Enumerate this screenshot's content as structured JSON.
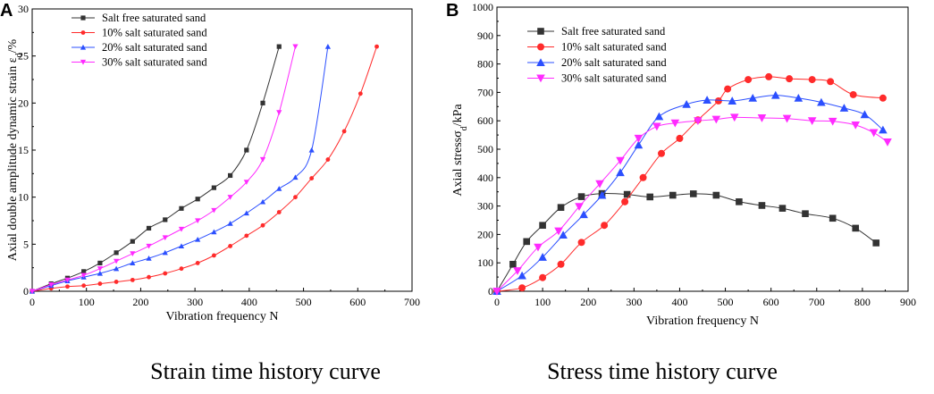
{
  "panel_a": {
    "letter": "A",
    "caption": "Strain time history curve"
  },
  "panel_b": {
    "letter": "B",
    "caption": "Stress time history curve"
  },
  "chart_data": [
    {
      "type": "line",
      "title": "Strain time history curve",
      "xlabel": "Vibration frequency N",
      "ylabel": "Axial double amplitude dynamic strain ε",
      "ylabel_sub": "d",
      "ylabel_suffix": "/%",
      "xlim": [
        0,
        700
      ],
      "ylim": [
        0,
        30
      ],
      "xticks": [
        0,
        100,
        200,
        300,
        400,
        500,
        600,
        700
      ],
      "yticks": [
        0,
        5,
        10,
        15,
        20,
        25,
        30
      ],
      "legend_position": "top-left",
      "series": [
        {
          "name": "Salt free saturated sand",
          "color": "#333333",
          "marker": "square",
          "x": [
            0,
            35,
            65,
            95,
            125,
            155,
            185,
            215,
            245,
            275,
            305,
            335,
            365,
            395,
            425,
            455
          ],
          "y": [
            0,
            0.8,
            1.4,
            2.1,
            3.0,
            4.1,
            5.3,
            6.7,
            7.6,
            8.8,
            9.8,
            11.0,
            12.3,
            15.0,
            20.0,
            26.0
          ]
        },
        {
          "name": "10% salt saturated sand",
          "color": "#ff2b2b",
          "marker": "circle",
          "x": [
            0,
            35,
            65,
            95,
            125,
            155,
            185,
            215,
            245,
            275,
            305,
            335,
            365,
            395,
            425,
            455,
            485,
            515,
            545,
            575,
            605,
            635
          ],
          "y": [
            0,
            0.3,
            0.5,
            0.6,
            0.8,
            1.0,
            1.2,
            1.5,
            1.9,
            2.4,
            3.0,
            3.8,
            4.8,
            5.9,
            7.0,
            8.4,
            10.0,
            12.0,
            14.0,
            17.0,
            21.0,
            26.0
          ]
        },
        {
          "name": "20% salt saturated sand",
          "color": "#2b4fff",
          "marker": "triangle-up",
          "x": [
            0,
            35,
            65,
            95,
            125,
            155,
            185,
            215,
            245,
            275,
            305,
            335,
            365,
            395,
            425,
            455,
            485,
            515,
            545
          ],
          "y": [
            0,
            0.6,
            1.1,
            1.5,
            1.9,
            2.4,
            3.0,
            3.5,
            4.1,
            4.8,
            5.5,
            6.3,
            7.2,
            8.3,
            9.5,
            10.9,
            12.1,
            15.0,
            26.0
          ]
        },
        {
          "name": "30% salt saturated sand",
          "color": "#ff2bff",
          "marker": "triangle-down",
          "x": [
            0,
            35,
            65,
            95,
            125,
            155,
            185,
            215,
            245,
            275,
            305,
            335,
            365,
            395,
            425,
            455,
            485
          ],
          "y": [
            0,
            0.7,
            1.2,
            1.7,
            2.4,
            3.2,
            4.0,
            4.8,
            5.7,
            6.6,
            7.5,
            8.6,
            10.0,
            11.6,
            14.0,
            19.0,
            26.0
          ]
        }
      ]
    },
    {
      "type": "line",
      "title": "Stress time history curve",
      "xlabel": "Vibration frequency N",
      "ylabel": "Axial stressσ",
      "ylabel_sub": "d",
      "ylabel_suffix": "/kPa",
      "xlim": [
        0,
        900
      ],
      "ylim": [
        0,
        1000
      ],
      "xticks": [
        0,
        100,
        200,
        300,
        400,
        500,
        600,
        700,
        800,
        900
      ],
      "yticks": [
        0,
        100,
        200,
        300,
        400,
        500,
        600,
        700,
        800,
        900,
        1000
      ],
      "legend_position": "top-left",
      "series": [
        {
          "name": "Salt free saturated sand",
          "color": "#333333",
          "marker": "square",
          "x": [
            0,
            35,
            65,
            100,
            140,
            185,
            230,
            285,
            335,
            385,
            430,
            480,
            530,
            580,
            625,
            675,
            735,
            785,
            830
          ],
          "y": [
            0,
            95,
            175,
            232,
            295,
            333,
            344,
            341,
            332,
            338,
            343,
            338,
            315,
            302,
            292,
            273,
            257,
            222,
            170
          ]
        },
        {
          "name": "10% salt saturated sand",
          "color": "#ff2b2b",
          "marker": "circle",
          "x": [
            0,
            55,
            100,
            140,
            185,
            235,
            280,
            320,
            360,
            400,
            440,
            485,
            505,
            550,
            595,
            640,
            690,
            730,
            780,
            845
          ],
          "y": [
            0,
            12,
            48,
            95,
            172,
            232,
            315,
            400,
            485,
            538,
            603,
            670,
            712,
            745,
            755,
            748,
            745,
            738,
            692,
            680
          ]
        },
        {
          "name": "20% salt saturated sand",
          "color": "#2b4fff",
          "marker": "triangle-up",
          "x": [
            0,
            55,
            100,
            145,
            190,
            230,
            270,
            310,
            355,
            415,
            460,
            515,
            560,
            610,
            660,
            710,
            760,
            805,
            845
          ],
          "y": [
            0,
            55,
            120,
            198,
            270,
            338,
            418,
            515,
            615,
            658,
            673,
            670,
            680,
            690,
            680,
            665,
            645,
            622,
            568
          ]
        },
        {
          "name": "30% salt saturated sand",
          "color": "#ff2bff",
          "marker": "triangle-down",
          "x": [
            0,
            45,
            90,
            135,
            180,
            225,
            270,
            310,
            350,
            390,
            440,
            480,
            520,
            580,
            635,
            690,
            735,
            785,
            825,
            855
          ],
          "y": [
            0,
            72,
            155,
            212,
            298,
            378,
            460,
            538,
            580,
            592,
            600,
            605,
            612,
            610,
            608,
            600,
            598,
            585,
            558,
            525
          ]
        }
      ]
    }
  ]
}
